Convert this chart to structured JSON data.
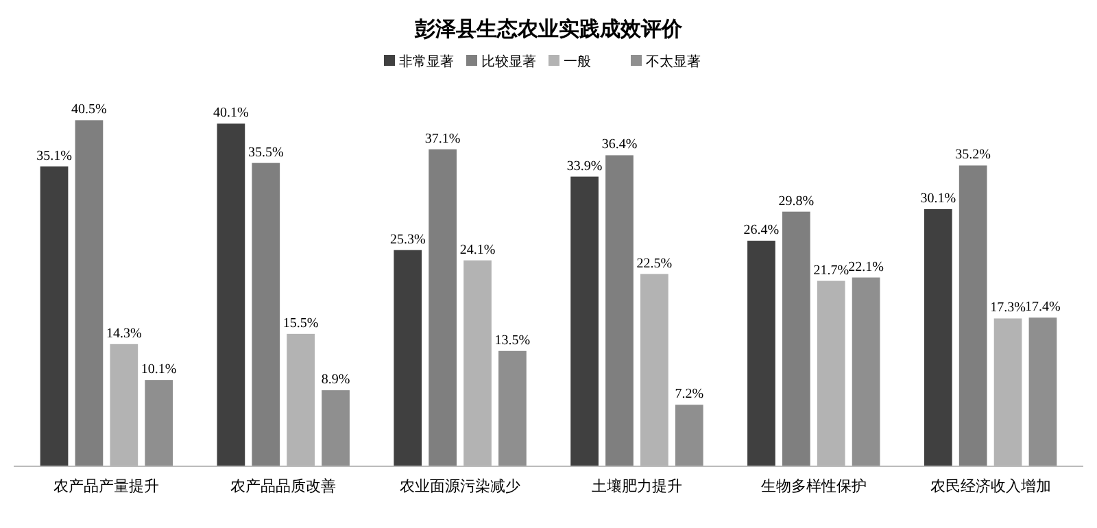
{
  "chart_data": {
    "type": "bar",
    "title": "彭泽县生态农业实践成效评价",
    "categories": [
      "农产品产量提升",
      "农产品品质改善",
      "农业面源污染减少",
      "土壤肥力提升",
      "生物多样性保护",
      "农民经济收入增加"
    ],
    "series": [
      {
        "name": "非常显著",
        "color": "#404040",
        "values": [
          35.1,
          40.1,
          25.3,
          33.9,
          26.4,
          30.1
        ],
        "value_labels": [
          "35.1%",
          "40.1%",
          "25.3%",
          "33.9%",
          "26.4%",
          "30.1%"
        ]
      },
      {
        "name": "比较显著",
        "color": "#7f7f7f",
        "values": [
          40.5,
          35.5,
          37.1,
          36.4,
          29.8,
          35.2
        ],
        "value_labels": [
          "40.5%",
          "35.5%",
          "37.1%",
          "36.4%",
          "29.8%",
          "35.2%"
        ]
      },
      {
        "name": "一般",
        "color": "#b3b3b3",
        "values": [
          14.3,
          15.5,
          24.1,
          22.5,
          21.7,
          17.3
        ],
        "value_labels": [
          "14.3%",
          "15.5%",
          "24.1%",
          "22.5%",
          "21.7%",
          "17.3%"
        ]
      },
      {
        "name": "不太显著",
        "color": "#8f8f8f",
        "values": [
          10.1,
          8.9,
          13.5,
          7.2,
          22.1,
          17.4
        ],
        "value_labels": [
          "10.1%",
          "8.9%",
          "13.5%",
          "7.2%",
          "22.1%",
          "17.4%"
        ]
      }
    ],
    "legend": "top"
  }
}
